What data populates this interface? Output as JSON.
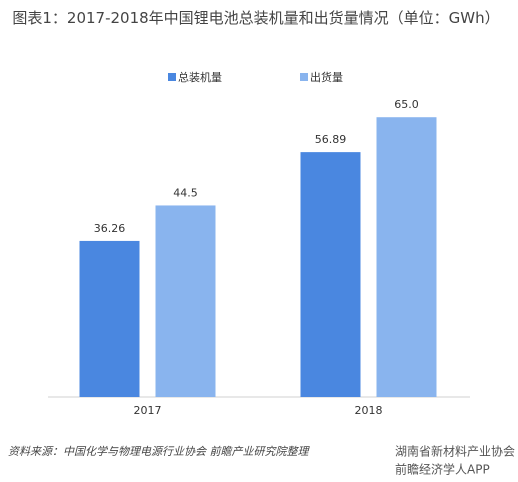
{
  "chart_data": {
    "type": "bar",
    "title": "图表1：2017-2018年中国锂电池总装机量和出货量情况（单位：GWh）",
    "categories": [
      "2017",
      "2018"
    ],
    "series": [
      {
        "name": "总装机量",
        "color": "#4a87e0",
        "values": [
          36.26,
          56.89
        ]
      },
      {
        "name": "出货量",
        "color": "#89b4ee",
        "values": [
          44.5,
          65.0
        ],
        "value_labels": [
          "44.5",
          "65.0"
        ]
      }
    ],
    "ylim": [
      0,
      92
    ],
    "legend": "top",
    "source": "资料来源：中国化学与物理电源行业协会 前瞻产业研究院整理",
    "watermarks": [
      "湖南省新材料产业协会",
      "前瞻经济学人APP"
    ]
  }
}
